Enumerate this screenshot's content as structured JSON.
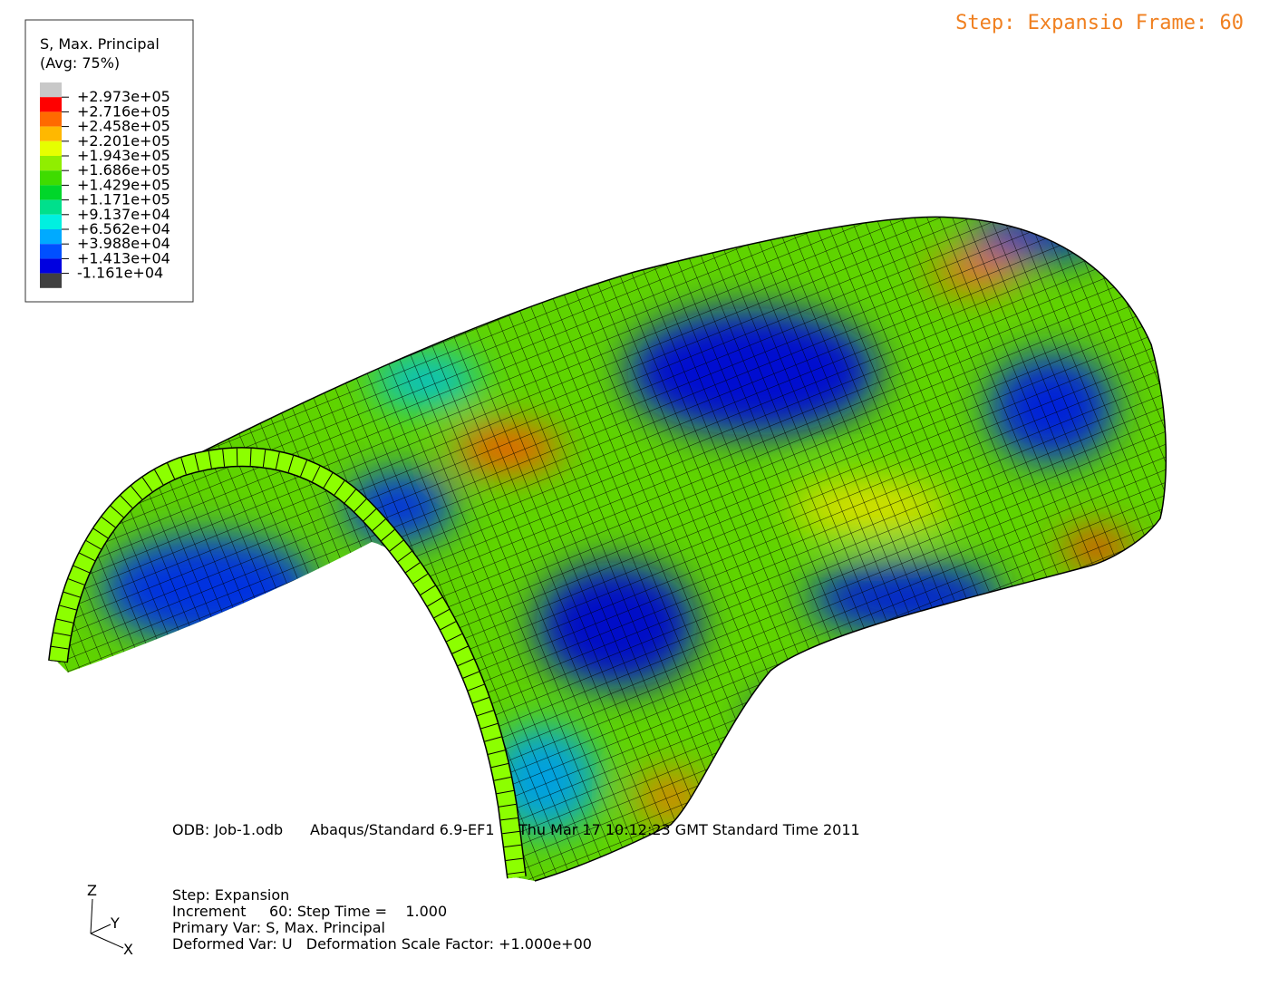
{
  "legend": {
    "title": [
      "S, Max. Principal",
      "(Avg: 75%)"
    ],
    "swatch_colors": [
      "#c8c8c8",
      "#ff0000",
      "#ff6a00",
      "#ffb800",
      "#e6ff00",
      "#90ee00",
      "#3fdc00",
      "#00d62a",
      "#00e08c",
      "#00f0e0",
      "#00aaff",
      "#0050ff",
      "#0000e0",
      "#404040"
    ],
    "labels": [
      "+2.973e+05",
      "+2.716e+05",
      "+2.458e+05",
      "+2.201e+05",
      "+1.943e+05",
      "+1.686e+05",
      "+1.429e+05",
      "+1.171e+05",
      "+9.137e+04",
      "+6.562e+04",
      "+3.988e+04",
      "+1.413e+04",
      "-1.161e+04"
    ]
  },
  "frame_label": "Step: Expansio Frame: 60",
  "odb_info": [
    "ODB: Job-1.odb",
    "Abaqus/Standard 6.9-EF1",
    "Thu Mar 17 10:12:23 GMT Standard Time 2011"
  ],
  "step_info": [
    "Step: Expansion",
    "Increment     60: Step Time =    1.000",
    "Primary Var: S, Max. Principal",
    "Deformed Var: U   Deformation Scale Factor: +1.000e+00"
  ],
  "triad": {
    "z": "Z",
    "y": "Y",
    "x": "X"
  }
}
